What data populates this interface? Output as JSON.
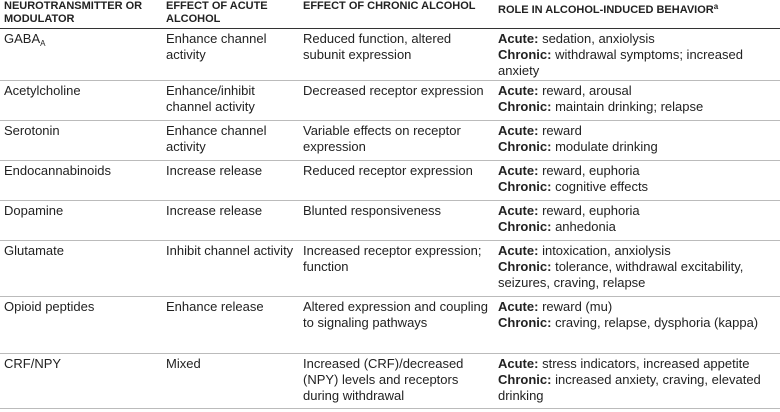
{
  "table": {
    "headers": [
      "NEUROTRANSMITTER OR MODULATOR",
      "EFFECT OF ACUTE ALCOHOL",
      "EFFECT OF CHRONIC ALCOHOL",
      "ROLE IN ALCOHOL-INDUCED BEHAVIOR"
    ],
    "header_note": "a",
    "rows": [
      {
        "name": "GABA",
        "name_sub": "A",
        "acute": "Enhance channel activity",
        "chronic": "Reduced function, altered subunit expression",
        "role": [
          {
            "label": "Acute:",
            "text": "sedation, anxiolysis"
          },
          {
            "label": "Chronic:",
            "text": "withdrawal symptoms; increased anxiety"
          }
        ]
      },
      {
        "name": "Acetylcholine",
        "acute": "Enhance/inhibit channel activity",
        "chronic": "Decreased receptor expression",
        "role": [
          {
            "label": "Acute:",
            "text": "reward, arousal"
          },
          {
            "label": "Chronic:",
            "text": "maintain drinking; relapse"
          }
        ]
      },
      {
        "name": "Serotonin",
        "acute": "Enhance channel activity",
        "chronic": "Variable effects on receptor expression",
        "role": [
          {
            "label": "Acute:",
            "text": "reward"
          },
          {
            "label": "Chronic:",
            "text": "modulate drinking"
          }
        ]
      },
      {
        "name": "Endocannabinoids",
        "acute": "Increase release",
        "chronic": "Reduced receptor expression",
        "role": [
          {
            "label": "Acute:",
            "text": "reward, euphoria"
          },
          {
            "label": "Chronic:",
            "text": "cognitive effects"
          }
        ]
      },
      {
        "name": "Dopamine",
        "acute": "Increase release",
        "chronic": "Blunted responsiveness",
        "role": [
          {
            "label": "Acute:",
            "text": "reward, euphoria"
          },
          {
            "label": "Chronic:",
            "text": "anhedonia"
          }
        ]
      },
      {
        "name": "Glutamate",
        "acute": "Inhibit channel activity",
        "chronic": "Increased receptor expression; function",
        "role": [
          {
            "label": "Acute:",
            "text": "intoxication, anxiolysis"
          },
          {
            "label": "Chronic:",
            "text": "tolerance, withdrawal excitability, seizures, craving, relapse"
          }
        ]
      },
      {
        "name": "Opioid peptides",
        "acute": "Enhance release",
        "chronic": "Altered expression and coupling to signaling pathways",
        "role": [
          {
            "label": "Acute:",
            "text": "reward (mu)"
          },
          {
            "label": "Chronic:",
            "text": "craving, relapse, dysphoria (kappa)"
          }
        ]
      },
      {
        "name": "CRF/NPY",
        "acute": "Mixed",
        "chronic": "Increased (CRF)/decreased (NPY) levels and receptors during withdrawal",
        "role": [
          {
            "label": "Acute:",
            "text": "stress indicators, increased appetite"
          },
          {
            "label": "Chronic:",
            "text": "increased anxiety, craving, elevated drinking"
          }
        ]
      }
    ]
  }
}
